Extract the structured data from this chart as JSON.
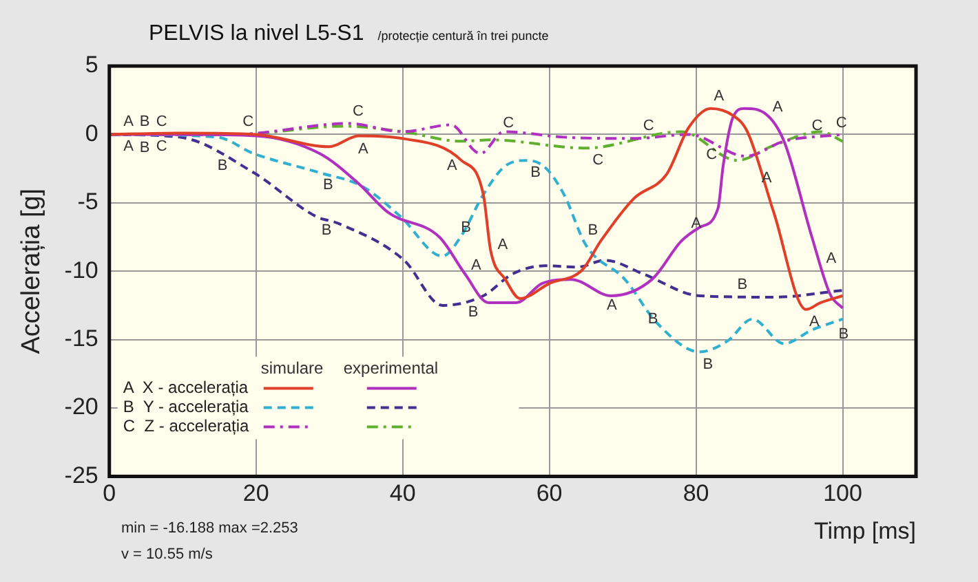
{
  "chart_data": {
    "type": "line",
    "title": "PELVIS la nivel L5-S1",
    "subtitle": "/protecție centură în trei puncte",
    "xlabel": "Timp [ms]",
    "ylabel": "Accelerația [g]",
    "xlim": [
      0,
      110
    ],
    "xticks": [
      0,
      20,
      40,
      60,
      80,
      100
    ],
    "ylim": [
      -25,
      5
    ],
    "yticks": [
      -25,
      -20,
      -15,
      -10,
      -5,
      0,
      5
    ],
    "grid": true,
    "legend": "bottom left",
    "marker": "none",
    "series": [
      {
        "name": "A  X - accelerația",
        "color": "#e0402a",
        "line_style": "solid",
        "x": [
          0,
          10,
          20,
          30,
          34,
          40,
          48,
          51,
          52,
          54,
          56,
          60,
          64.5,
          67,
          71.5,
          76,
          79,
          82,
          85,
          87,
          90.6,
          95,
          97,
          100
        ],
        "values": [
          0,
          0.1,
          0,
          -0.9,
          -0.1,
          -0.3,
          -1.9,
          -4.4,
          -8.5,
          -10.6,
          -12,
          -10.9,
          -9.9,
          -7.8,
          -4.7,
          -2.9,
          0.5,
          1.9,
          1.4,
          0.2,
          -5.7,
          -12.8,
          -12.3,
          -11.8
        ]
      },
      {
        "color": "#b030c0",
        "line_style": "solid",
        "x": [
          0,
          10,
          20,
          28.7,
          34,
          38,
          45,
          48.5,
          51.7,
          55.5,
          59,
          63,
          68.4,
          74,
          78,
          80.5,
          83,
          83.7,
          85,
          86.6,
          89.5,
          92,
          95.8,
          98.3,
          100
        ],
        "values": [
          0,
          0,
          -0.1,
          -1.4,
          -3.6,
          -5.7,
          -7.5,
          -10.2,
          -12.3,
          -12.3,
          -10.9,
          -10.6,
          -11.8,
          -10.6,
          -7.8,
          -6.8,
          -5.4,
          -2.3,
          1.2,
          1.9,
          1.5,
          -0.5,
          -7.5,
          -11.7,
          -12.7
        ]
      },
      {
        "name": "B  Y - accelerația",
        "color": "#30b0d0",
        "line_style": "dashed",
        "x": [
          0,
          14.7,
          19.7,
          28.7,
          34.5,
          39.7,
          45.4,
          47.9,
          51,
          54,
          57,
          59.4,
          62,
          65,
          70.3,
          74.7,
          80.5,
          84.3,
          87.7,
          92,
          95.8,
          100
        ],
        "values": [
          0,
          -0.2,
          -1.4,
          -2.8,
          -3.8,
          -6,
          -8.9,
          -7.5,
          -4.4,
          -2.3,
          -1.9,
          -2.4,
          -4.4,
          -8.1,
          -10.6,
          -13.8,
          -15.9,
          -15.1,
          -13.5,
          -15.3,
          -14.3,
          -13.5
        ]
      },
      {
        "color": "#403090",
        "line_style": "dashed",
        "x": [
          0,
          9.6,
          19.7,
          28.2,
          31.2,
          40.2,
          45.4,
          51,
          55,
          59.4,
          63.8,
          67.6,
          72.8,
          80.5,
          90.6,
          100
        ],
        "values": [
          0,
          -0.2,
          -2.8,
          -6,
          -6.5,
          -9.2,
          -12.5,
          -11.8,
          -10.2,
          -9.6,
          -9.7,
          -9.2,
          -10.2,
          -11.8,
          -11.9,
          -11.4
        ]
      },
      {
        "name": "C  Z - accelerația",
        "color": "#b030c0",
        "line_style": "dashdot",
        "x": [
          0,
          17,
          32.6,
          40,
          46.6,
          49.8,
          50.6,
          53.8,
          62,
          71.5,
          79,
          86.8,
          92,
          100
        ],
        "values": [
          0,
          0,
          0.8,
          0.2,
          0.7,
          -1.2,
          -1.4,
          0.2,
          -0.2,
          -0.3,
          0,
          -1.6,
          -0.5,
          0
        ]
      },
      {
        "color": "#60b030",
        "line_style": "dashdot",
        "x": [
          0,
          17,
          32,
          40,
          48,
          52,
          65,
          78,
          85.6,
          90.6,
          97,
          100
        ],
        "values": [
          0,
          0,
          0.6,
          0.2,
          -0.5,
          -0.4,
          -1,
          0.2,
          -1.9,
          -0.8,
          0.2,
          -0.5
        ]
      }
    ],
    "annotations": [
      "simulare",
      "experimental",
      "min = -16.188  max =2.253",
      "v = 10.55 m/s",
      {
        "text": "A",
        "x": 1.5,
        "y": 0
      },
      {
        "text": "B",
        "x": 3.7,
        "y": 0
      },
      {
        "text": "C",
        "x": 6,
        "y": 0
      },
      {
        "text": "A",
        "x": 1.5,
        "y": 0
      },
      {
        "text": "B",
        "x": 3.7,
        "y": -0.1
      },
      {
        "text": "C",
        "x": 6,
        "y": 0
      },
      {
        "text": "C",
        "x": 17.8,
        "y": 0
      },
      {
        "text": "B",
        "x": 14.3,
        "y": -1.4
      },
      {
        "text": "C",
        "x": 32.8,
        "y": 0.8
      },
      {
        "text": "A",
        "x": 33.5,
        "y": -0.2
      },
      {
        "text": "B",
        "x": 28.7,
        "y": -2.8
      },
      {
        "text": "B",
        "x": 28.5,
        "y": -6.1
      },
      {
        "text": "A",
        "x": 45.6,
        "y": -1.4
      },
      {
        "text": "B",
        "x": 47.5,
        "y": -7.7
      },
      {
        "text": "A",
        "x": 48.9,
        "y": -10.5
      },
      {
        "text": "B",
        "x": 48.5,
        "y": -12.1
      },
      {
        "text": "C",
        "x": 53.3,
        "y": -0.1
      },
      {
        "text": "A",
        "x": 52.5,
        "y": -9
      },
      {
        "text": "B",
        "x": 57,
        "y": -1.9
      },
      {
        "text": "B",
        "x": 64.8,
        "y": -7.9
      },
      {
        "text": "C",
        "x": 65.5,
        "y": -1
      },
      {
        "text": "C",
        "x": 72.4,
        "y": -0.3
      },
      {
        "text": "A",
        "x": 67.4,
        "y": -11.6
      },
      {
        "text": "A",
        "x": 78.9,
        "y": -7.4
      },
      {
        "text": "B",
        "x": 73,
        "y": -12.6
      },
      {
        "text": "A",
        "x": 82,
        "y": 1.9
      },
      {
        "text": "C",
        "x": 81,
        "y": -0.6
      },
      {
        "text": "A",
        "x": 90,
        "y": 1.1
      },
      {
        "text": "B",
        "x": 85.2,
        "y": -11.9
      },
      {
        "text": "A",
        "x": 88.5,
        "y": -2.3
      },
      {
        "text": "C",
        "x": 95.4,
        "y": -0.3
      },
      {
        "text": "C",
        "x": 98.7,
        "y": -0.1
      },
      {
        "text": "A",
        "x": 97.3,
        "y": -10
      },
      {
        "text": "A",
        "x": 95,
        "y": -12.8
      },
      {
        "text": "B",
        "x": 99,
        "y": -13.7
      },
      {
        "text": "B",
        "x": 80.5,
        "y": -15.9
      }
    ]
  }
}
